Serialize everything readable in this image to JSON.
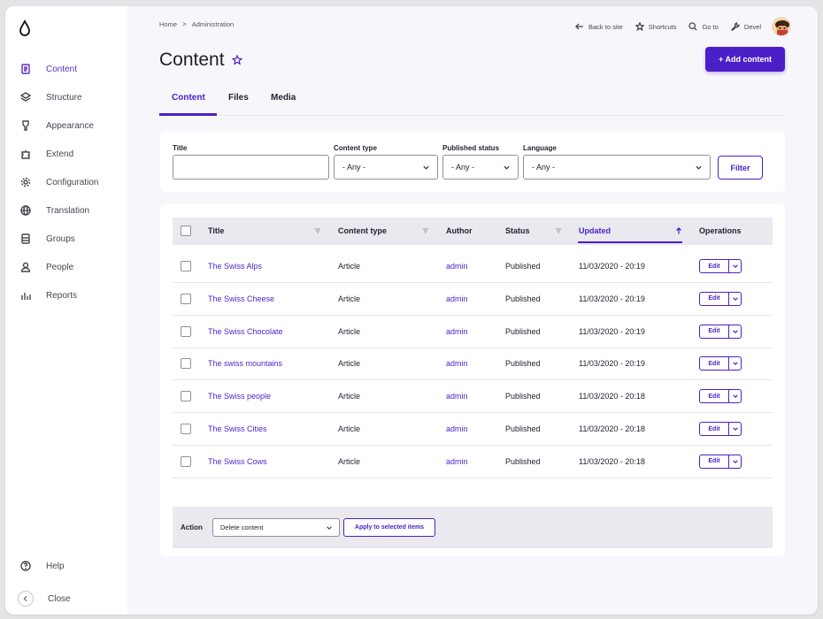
{
  "sidebar": {
    "items": [
      {
        "label": "Content",
        "icon": "document-icon",
        "active": true
      },
      {
        "label": "Structure",
        "icon": "layers-icon"
      },
      {
        "label": "Appearance",
        "icon": "brush-icon"
      },
      {
        "label": "Extend",
        "icon": "puzzle-icon"
      },
      {
        "label": "Configuration",
        "icon": "gear-icon"
      },
      {
        "label": "Translation",
        "icon": "globe-icon"
      },
      {
        "label": "Groups",
        "icon": "stack-icon"
      },
      {
        "label": "People",
        "icon": "person-icon"
      },
      {
        "label": "Reports",
        "icon": "bar-chart-icon"
      }
    ],
    "help": "Help",
    "close": "Close"
  },
  "breadcrumb": {
    "home": "Home",
    "separator": ">",
    "current": "Administration"
  },
  "toolbar": {
    "back": "Back to site",
    "shortcuts": "Shortcuts",
    "goto": "Go to",
    "devel": "Devel"
  },
  "page": {
    "title": "Content",
    "add_button": "+ Add content"
  },
  "tabs": [
    "Content",
    "Files",
    "Media"
  ],
  "filters": {
    "title_label": "Title",
    "title_value": "",
    "type_label": "Content type",
    "type_value": "- Any -",
    "status_label": "Published status",
    "status_value": "- Any -",
    "language_label": "Language",
    "language_value": "- Any -",
    "filter_button": "Filter"
  },
  "table": {
    "headers": {
      "title": "Title",
      "type": "Content type",
      "author": "Author",
      "status": "Status",
      "updated": "Updated",
      "operations": "Operations"
    },
    "edit_label": "Edit",
    "rows": [
      {
        "title": "The Swiss Alps",
        "type": "Article",
        "author": "admin",
        "status": "Published",
        "updated": "11/03/2020 - 20:19"
      },
      {
        "title": "The Swiss Cheese",
        "type": "Article",
        "author": "admin",
        "status": "Published",
        "updated": "11/03/2020 - 20:19"
      },
      {
        "title": "The Swiss Chocolate",
        "type": "Article",
        "author": "admin",
        "status": "Published",
        "updated": "11/03/2020 - 20:19"
      },
      {
        "title": "The swiss mountains",
        "type": "Article",
        "author": "admin",
        "status": "Published",
        "updated": "11/03/2020 - 20:19"
      },
      {
        "title": "The Swiss people",
        "type": "Article",
        "author": "admin",
        "status": "Published",
        "updated": "11/03/2020 - 20:18"
      },
      {
        "title": "The Swiss Cities",
        "type": "Article",
        "author": "admin",
        "status": "Published",
        "updated": "11/03/2020 - 20:18"
      },
      {
        "title": "The Swiss Cows",
        "type": "Article",
        "author": "admin",
        "status": "Published",
        "updated": "11/03/2020 - 20:18"
      }
    ]
  },
  "bulk": {
    "label": "Action",
    "selected": "Delete content",
    "apply": "Apply to selected items"
  },
  "colors": {
    "accent": "#4b1fc8",
    "background": "#f7f7fb",
    "header_bg": "#e9e9ef"
  }
}
